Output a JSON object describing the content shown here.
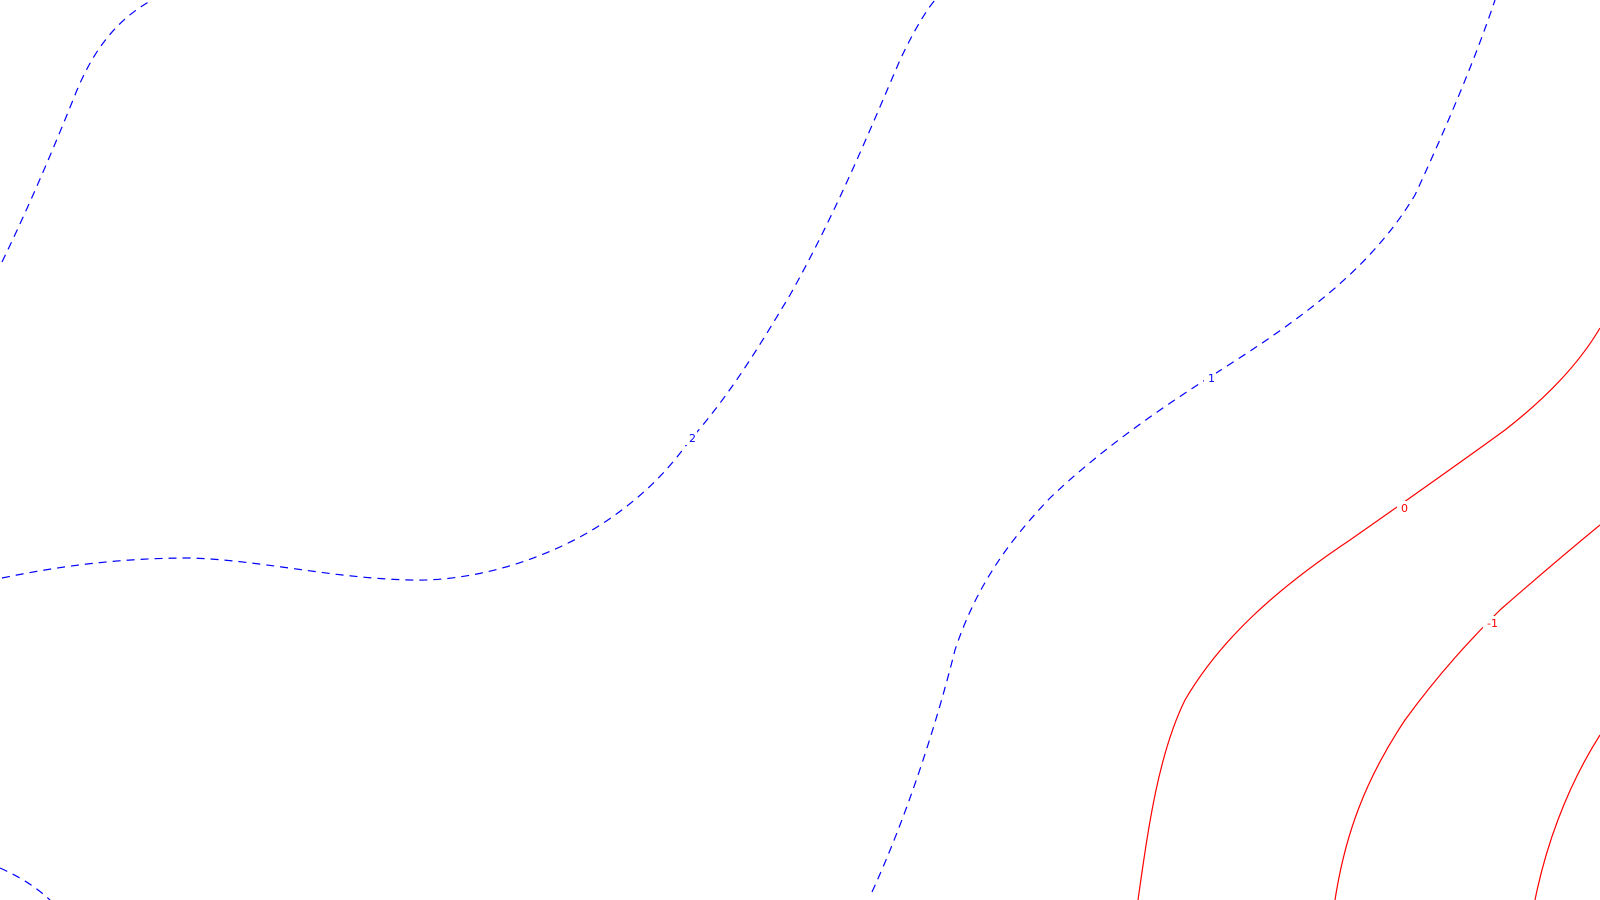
{
  "chart_data": {
    "type": "contour",
    "title": "",
    "xlabel": "",
    "ylabel": "",
    "grid": false,
    "legend": "none",
    "levels": [
      {
        "value": 2,
        "label": "2",
        "color": "#0000ff",
        "style": "dashed"
      },
      {
        "value": 1,
        "label": "1",
        "color": "#0000ff",
        "style": "dashed"
      },
      {
        "value": 0,
        "label": "0",
        "color": "#ff0000",
        "style": "solid"
      },
      {
        "value": -1,
        "label": "-1",
        "color": "#ff0000",
        "style": "solid"
      }
    ]
  }
}
